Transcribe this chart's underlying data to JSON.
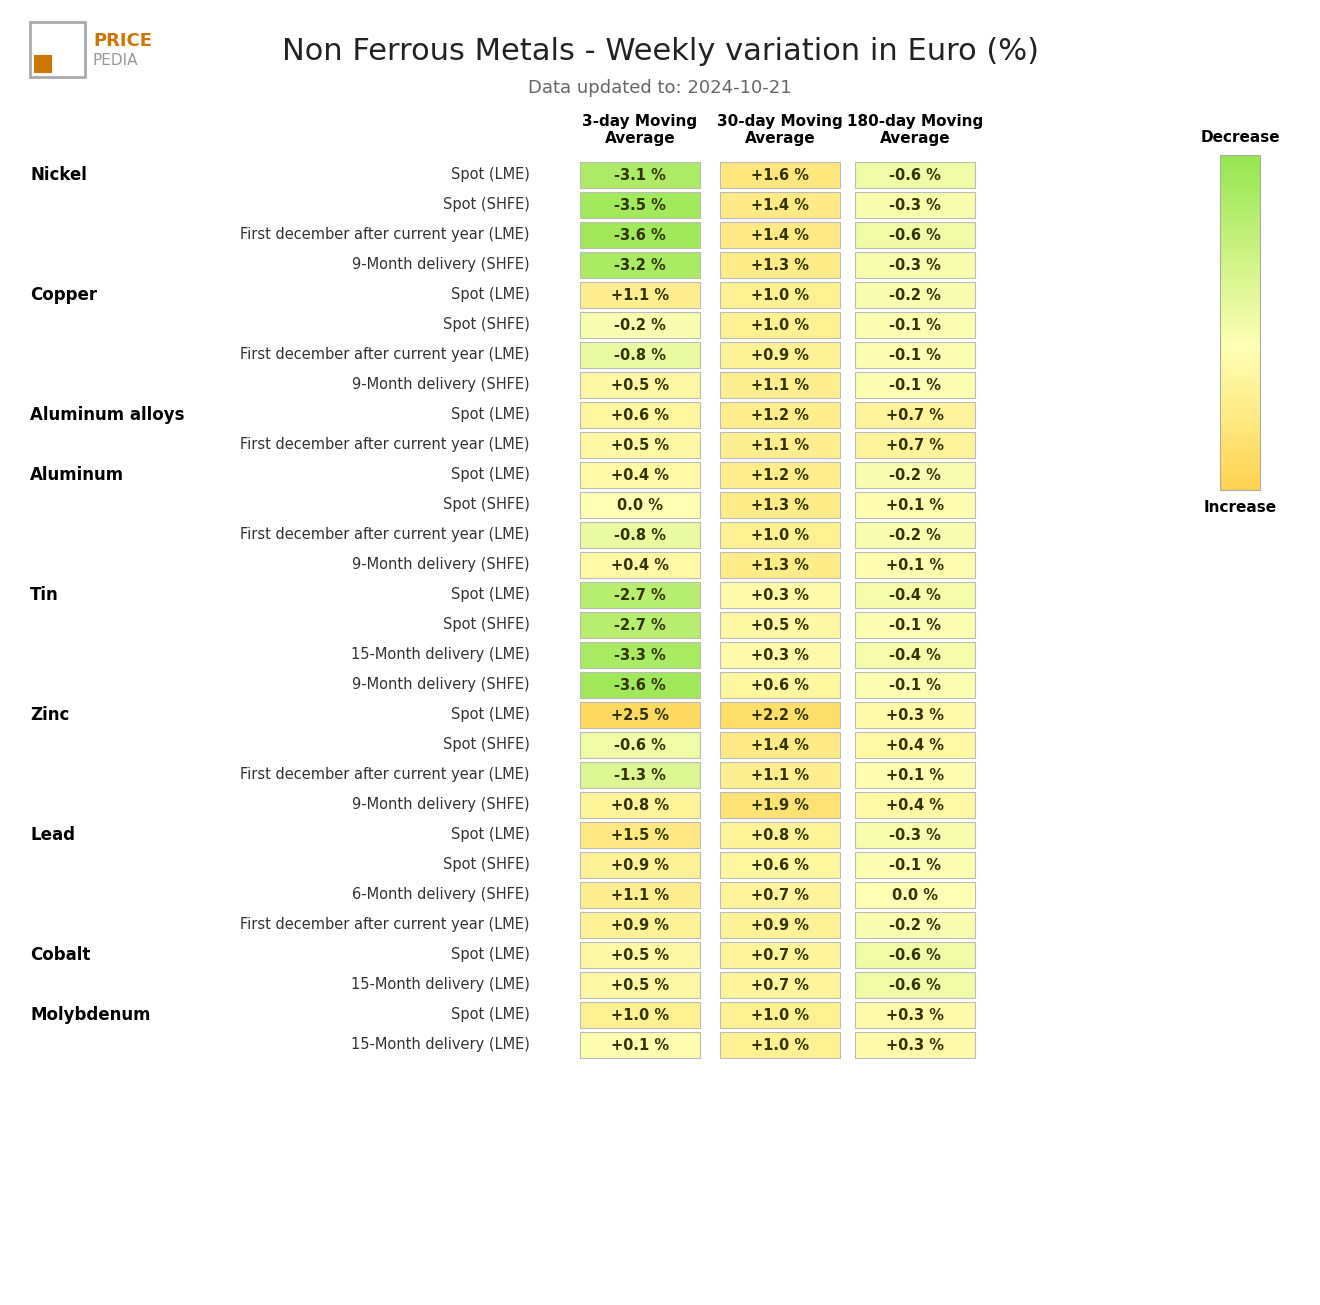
{
  "title": "Non Ferrous Metals - Weekly variation in Euro (%)",
  "subtitle": "Data updated to: 2024-10-21",
  "col_headers": [
    "3-day Moving\nAverage",
    "30-day Moving\nAverage",
    "180-day Moving\nAverage"
  ],
  "rows": [
    {
      "metal": "Nickel",
      "label": "Spot (LME)",
      "vals": [
        -3.1,
        1.6,
        -0.6
      ]
    },
    {
      "metal": "",
      "label": "Spot (SHFE)",
      "vals": [
        -3.5,
        1.4,
        -0.3
      ]
    },
    {
      "metal": "",
      "label": "First december after current year (LME)",
      "vals": [
        -3.6,
        1.4,
        -0.6
      ]
    },
    {
      "metal": "",
      "label": "9-Month delivery (SHFE)",
      "vals": [
        -3.2,
        1.3,
        -0.3
      ]
    },
    {
      "metal": "Copper",
      "label": "Spot (LME)",
      "vals": [
        1.1,
        1.0,
        -0.2
      ]
    },
    {
      "metal": "",
      "label": "Spot (SHFE)",
      "vals": [
        -0.2,
        1.0,
        -0.1
      ]
    },
    {
      "metal": "",
      "label": "First december after current year (LME)",
      "vals": [
        -0.8,
        0.9,
        -0.1
      ]
    },
    {
      "metal": "",
      "label": "9-Month delivery (SHFE)",
      "vals": [
        0.5,
        1.1,
        -0.1
      ]
    },
    {
      "metal": "Aluminum alloys",
      "label": "Spot (LME)",
      "vals": [
        0.6,
        1.2,
        0.7
      ]
    },
    {
      "metal": "",
      "label": "First december after current year (LME)",
      "vals": [
        0.5,
        1.1,
        0.7
      ]
    },
    {
      "metal": "Aluminum",
      "label": "Spot (LME)",
      "vals": [
        0.4,
        1.2,
        -0.2
      ]
    },
    {
      "metal": "",
      "label": "Spot (SHFE)",
      "vals": [
        0.0,
        1.3,
        0.1
      ]
    },
    {
      "metal": "",
      "label": "First december after current year (LME)",
      "vals": [
        -0.8,
        1.0,
        -0.2
      ]
    },
    {
      "metal": "",
      "label": "9-Month delivery (SHFE)",
      "vals": [
        0.4,
        1.3,
        0.1
      ]
    },
    {
      "metal": "Tin",
      "label": "Spot (LME)",
      "vals": [
        -2.7,
        0.3,
        -0.4
      ]
    },
    {
      "metal": "",
      "label": "Spot (SHFE)",
      "vals": [
        -2.7,
        0.5,
        -0.1
      ]
    },
    {
      "metal": "",
      "label": "15-Month delivery (LME)",
      "vals": [
        -3.3,
        0.3,
        -0.4
      ]
    },
    {
      "metal": "",
      "label": "9-Month delivery (SHFE)",
      "vals": [
        -3.6,
        0.6,
        -0.1
      ]
    },
    {
      "metal": "Zinc",
      "label": "Spot (LME)",
      "vals": [
        2.5,
        2.2,
        0.3
      ]
    },
    {
      "metal": "",
      "label": "Spot (SHFE)",
      "vals": [
        -0.6,
        1.4,
        0.4
      ]
    },
    {
      "metal": "",
      "label": "First december after current year (LME)",
      "vals": [
        -1.3,
        1.1,
        0.1
      ]
    },
    {
      "metal": "",
      "label": "9-Month delivery (SHFE)",
      "vals": [
        0.8,
        1.9,
        0.4
      ]
    },
    {
      "metal": "Lead",
      "label": "Spot (LME)",
      "vals": [
        1.5,
        0.8,
        -0.3
      ]
    },
    {
      "metal": "",
      "label": "Spot (SHFE)",
      "vals": [
        0.9,
        0.6,
        -0.1
      ]
    },
    {
      "metal": "",
      "label": "6-Month delivery (SHFE)",
      "vals": [
        1.1,
        0.7,
        0.0
      ]
    },
    {
      "metal": "",
      "label": "First december after current year (LME)",
      "vals": [
        0.9,
        0.9,
        -0.2
      ]
    },
    {
      "metal": "Cobalt",
      "label": "Spot (LME)",
      "vals": [
        0.5,
        0.7,
        -0.6
      ]
    },
    {
      "metal": "",
      "label": "15-Month delivery (LME)",
      "vals": [
        0.5,
        0.7,
        -0.6
      ]
    },
    {
      "metal": "Molybdenum",
      "label": "Spot (LME)",
      "vals": [
        1.0,
        1.0,
        0.3
      ]
    },
    {
      "metal": "",
      "label": "15-Month delivery (LME)",
      "vals": [
        0.1,
        1.0,
        0.3
      ]
    }
  ],
  "bg_color": "#ffffff",
  "title_color": "#222222",
  "subtitle_color": "#666666",
  "metal_label_color": "#000000",
  "cell_text_color": "#333300",
  "row_label_color": "#333333",
  "decrease_label": "Decrease",
  "increase_label": "Increase",
  "colorbar_label_color": "#000000"
}
